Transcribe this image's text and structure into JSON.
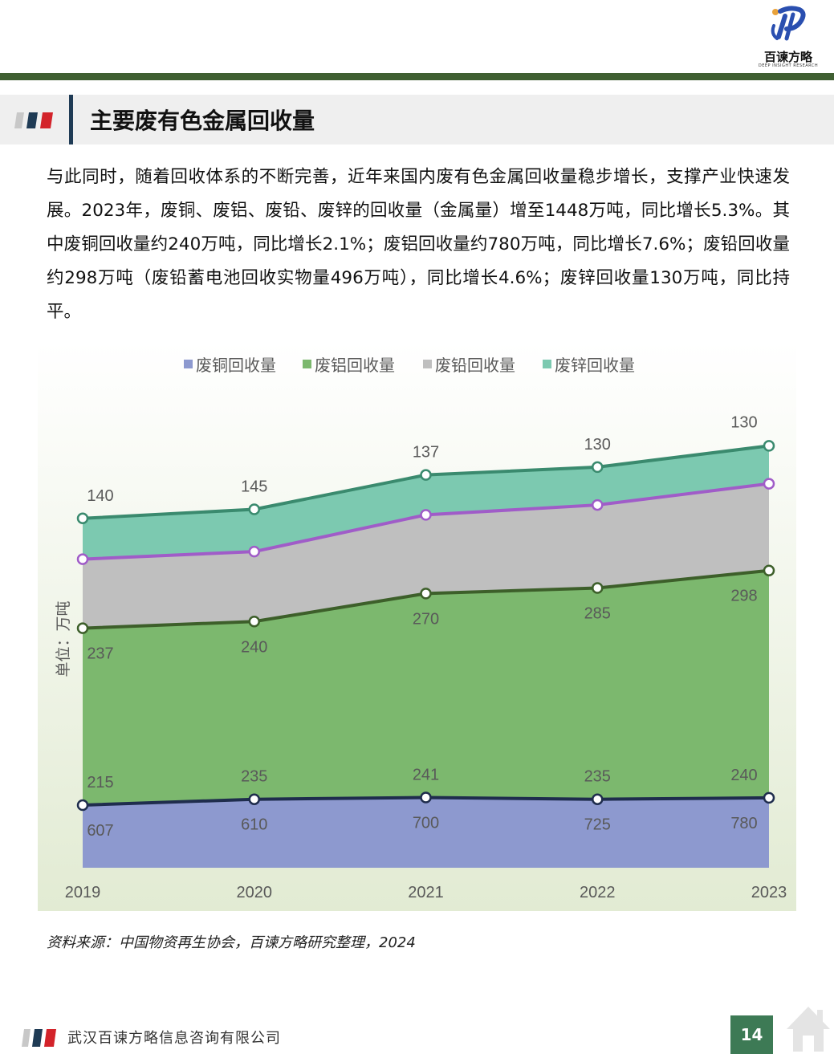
{
  "header": {
    "logo_name": "百谏方略",
    "logo_sub": "DEEP INSIGHT RESEARCH"
  },
  "section": {
    "title": "主要废有色金属回收量"
  },
  "body_text": "与此同时，随着回收体系的不断完善，近年来国内废有色金属回收量稳步增长，支撑产业快速发展。2023年，废铜、废铝、废铅、废锌的回收量（金属量）增至1448万吨，同比增长5.3%。其中废铜回收量约240万吨，同比增长2.1%；废铝回收量约780万吨，同比增长7.6%；废铅回收量约298万吨（废铅蓄电池回收实物量496万吨），同比增长4.6%；废锌回收量130万吨，同比持平。",
  "chart_data": {
    "type": "area",
    "stacked": true,
    "x": [
      "2019",
      "2020",
      "2021",
      "2022",
      "2023"
    ],
    "ylabel": "单位：万吨",
    "legend_position": "top",
    "series": [
      {
        "name": "废铜回收量",
        "values": [
          215,
          235,
          241,
          235,
          240
        ],
        "fill": "#8d99cf",
        "line": "#1f2d4d"
      },
      {
        "name": "废铝回收量",
        "values": [
          607,
          610,
          700,
          725,
          780
        ],
        "fill": "#7cb86e",
        "line": "#3d5f2a"
      },
      {
        "name": "废铅回收量",
        "values": [
          237,
          240,
          270,
          285,
          298
        ],
        "fill": "#bfbfbf",
        "line": "#a05cc8"
      },
      {
        "name": "废锌回收量",
        "values": [
          140,
          145,
          137,
          130,
          130
        ],
        "fill": "#7cc9b0",
        "line": "#3a8a6e"
      }
    ]
  },
  "source": "资料来源：中国物资再生协会，百谏方略研究整理，2024",
  "footer": {
    "company": "武汉百谏方略信息咨询有限公司",
    "page_number": "14"
  },
  "colors": {
    "accent_green": "#3f5f32",
    "title_divider": "#1f3b55",
    "page_box": "#3d7a55"
  }
}
